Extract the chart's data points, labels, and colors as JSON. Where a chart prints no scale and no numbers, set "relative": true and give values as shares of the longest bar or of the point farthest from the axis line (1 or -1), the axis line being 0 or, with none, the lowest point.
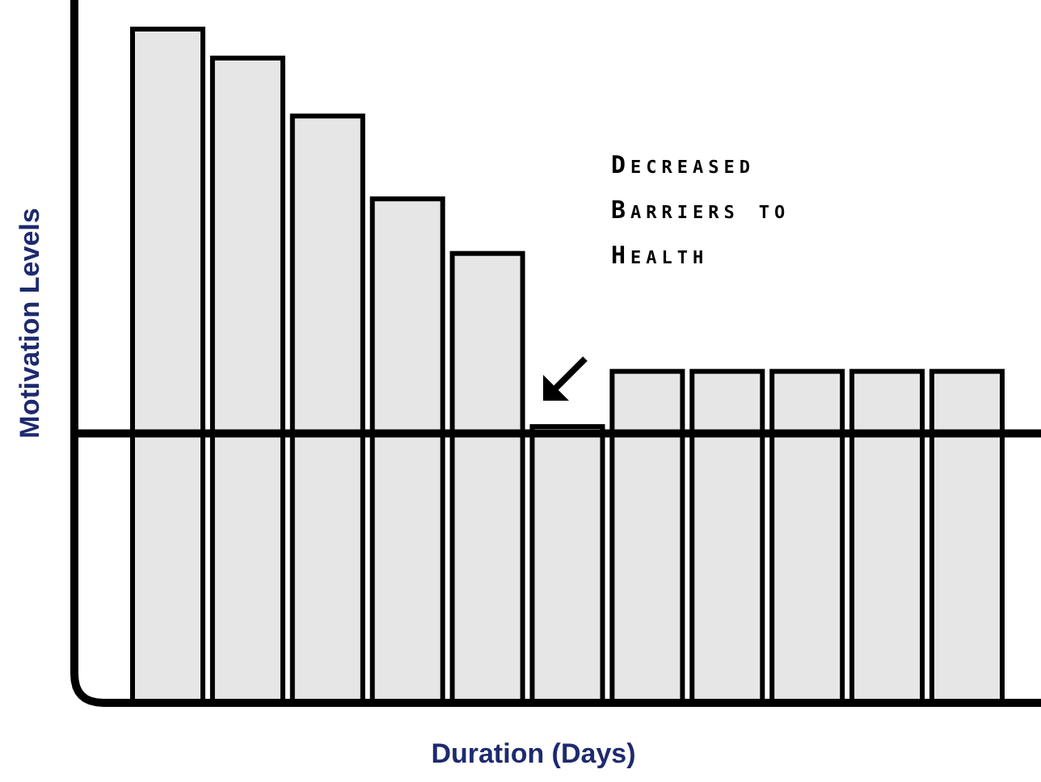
{
  "chart_data": {
    "type": "bar",
    "relative": true,
    "xlabel": "Duration (Days)",
    "ylabel": "Motivation Levels",
    "categories": [
      null,
      null,
      null,
      null,
      null,
      null,
      null,
      null,
      null,
      null,
      null
    ],
    "values": [
      1,
      0.957,
      0.871,
      0.748,
      0.667,
      0.41,
      0.492,
      0.492,
      0.492,
      0.492,
      0.492
    ],
    "color": "#e6e6e6",
    "ref_lines": [
      {
        "axis": "y",
        "value": 0.4,
        "color": "#000000"
      }
    ],
    "annotations": [
      "Decreased Barriers to Health"
    ]
  }
}
